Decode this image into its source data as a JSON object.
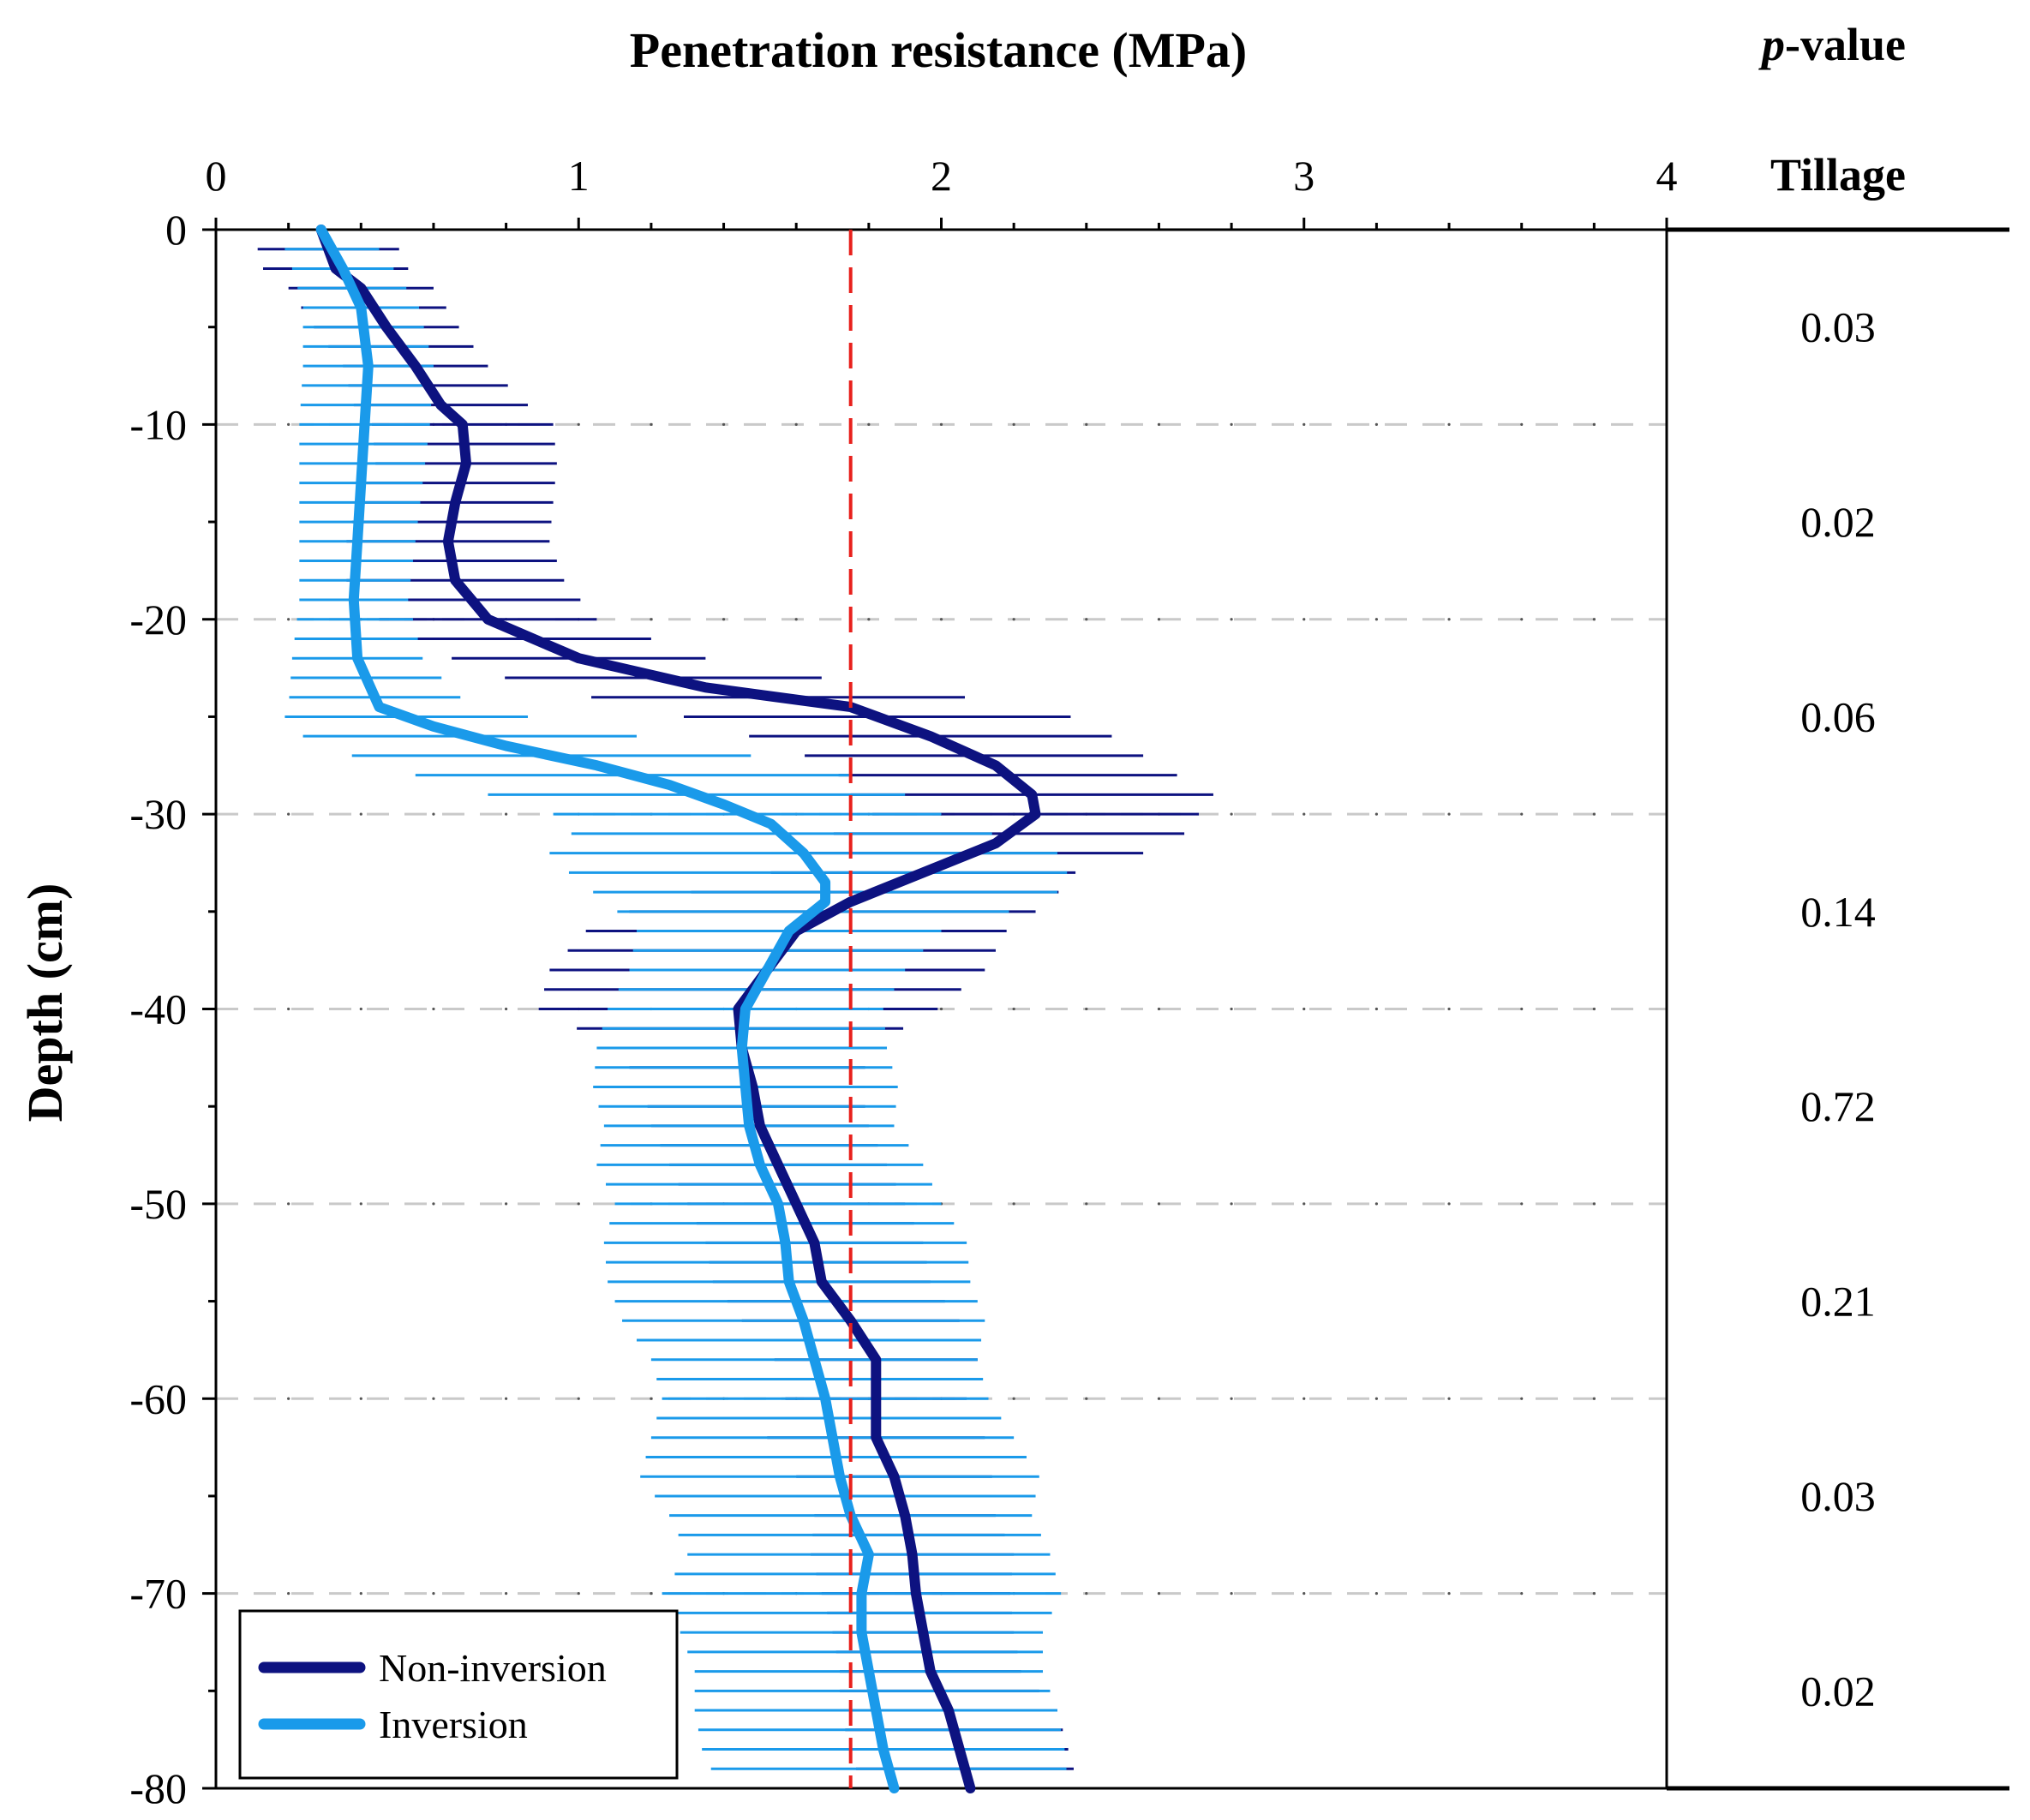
{
  "chart_data": {
    "type": "line",
    "title": "Penetration resistance (MPa)",
    "xlabel": "Penetration resistance (MPa)",
    "ylabel": "Depth (cm)",
    "xlim": [
      0,
      4
    ],
    "ylim": [
      -80,
      0
    ],
    "x_ticks": [
      "0",
      "1",
      "2",
      "3",
      "4"
    ],
    "y_ticks": [
      "0",
      "-10",
      "-20",
      "-30",
      "-40",
      "-50",
      "-60",
      "-70",
      "-80"
    ],
    "threshold": {
      "x": 1.75,
      "color": "#e8201c",
      "style": "dashed"
    },
    "series": [
      {
        "name": "Non-inversion",
        "color": "#0d1280",
        "points": [
          [
            0.29,
            0
          ],
          [
            0.33,
            -2
          ],
          [
            0.4,
            -3
          ],
          [
            0.47,
            -5
          ],
          [
            0.55,
            -7
          ],
          [
            0.62,
            -9
          ],
          [
            0.68,
            -10
          ],
          [
            0.69,
            -12
          ],
          [
            0.66,
            -14
          ],
          [
            0.64,
            -16
          ],
          [
            0.66,
            -18
          ],
          [
            0.75,
            -20
          ],
          [
            1.0,
            -22
          ],
          [
            1.35,
            -23.5
          ],
          [
            1.75,
            -24.5
          ],
          [
            1.97,
            -26
          ],
          [
            2.15,
            -27.5
          ],
          [
            2.25,
            -29
          ],
          [
            2.26,
            -30
          ],
          [
            2.15,
            -31.5
          ],
          [
            1.95,
            -33
          ],
          [
            1.75,
            -34.5
          ],
          [
            1.6,
            -36
          ],
          [
            1.52,
            -38
          ],
          [
            1.44,
            -40
          ],
          [
            1.45,
            -42
          ],
          [
            1.48,
            -44
          ],
          [
            1.5,
            -46
          ],
          [
            1.55,
            -48
          ],
          [
            1.6,
            -50
          ],
          [
            1.65,
            -52
          ],
          [
            1.67,
            -54
          ],
          [
            1.75,
            -56
          ],
          [
            1.82,
            -58
          ],
          [
            1.82,
            -60
          ],
          [
            1.82,
            -62
          ],
          [
            1.87,
            -64
          ],
          [
            1.9,
            -66
          ],
          [
            1.92,
            -68
          ],
          [
            1.93,
            -70
          ],
          [
            1.95,
            -72
          ],
          [
            1.97,
            -74
          ],
          [
            2.02,
            -76
          ],
          [
            2.05,
            -78
          ],
          [
            2.08,
            -80
          ]
        ],
        "error": [
          0.19,
          0.2,
          0.2,
          0.2,
          0.2,
          0.24,
          0.25,
          0.25,
          0.27,
          0.28,
          0.3,
          0.3,
          0.35,
          0.48,
          0.55,
          0.5,
          0.45,
          0.5,
          0.45,
          0.5,
          0.42,
          0.55,
          0.58,
          0.6,
          0.55,
          0.35,
          0.3,
          0.3,
          0.3,
          0.3,
          0.3,
          0.3,
          0.3,
          0.28,
          0.25,
          0.3,
          0.27,
          0.25,
          0.28,
          0.26,
          0.25,
          0.25,
          0.3,
          0.3,
          0.3
        ],
        "error_scale": 1
      },
      {
        "name": "Inversion",
        "color": "#1a9aea",
        "points": [
          [
            0.29,
            0
          ],
          [
            0.35,
            -2
          ],
          [
            0.4,
            -4
          ],
          [
            0.42,
            -7
          ],
          [
            0.41,
            -10
          ],
          [
            0.4,
            -13
          ],
          [
            0.39,
            -16
          ],
          [
            0.38,
            -19
          ],
          [
            0.39,
            -22
          ],
          [
            0.45,
            -24.5
          ],
          [
            0.6,
            -25.5
          ],
          [
            0.8,
            -26.5
          ],
          [
            1.05,
            -27.5
          ],
          [
            1.25,
            -28.5
          ],
          [
            1.4,
            -29.5
          ],
          [
            1.53,
            -30.5
          ],
          [
            1.62,
            -32
          ],
          [
            1.68,
            -33.5
          ],
          [
            1.68,
            -34.5
          ],
          [
            1.58,
            -36
          ],
          [
            1.52,
            -38
          ],
          [
            1.46,
            -40
          ],
          [
            1.45,
            -42
          ],
          [
            1.46,
            -44
          ],
          [
            1.47,
            -46
          ],
          [
            1.5,
            -48
          ],
          [
            1.55,
            -50
          ],
          [
            1.57,
            -52
          ],
          [
            1.58,
            -54
          ],
          [
            1.62,
            -56
          ],
          [
            1.65,
            -58
          ],
          [
            1.68,
            -60
          ],
          [
            1.7,
            -62
          ],
          [
            1.72,
            -64
          ],
          [
            1.75,
            -66
          ],
          [
            1.8,
            -68
          ],
          [
            1.78,
            -70
          ],
          [
            1.78,
            -72
          ],
          [
            1.8,
            -74
          ],
          [
            1.82,
            -76
          ],
          [
            1.84,
            -78
          ],
          [
            1.87,
            -80
          ]
        ],
        "error": [
          0.12,
          0.14,
          0.16,
          0.18,
          0.18,
          0.17,
          0.16,
          0.15,
          0.18,
          0.25,
          0.42,
          0.5,
          0.6,
          0.6,
          0.55,
          0.52,
          0.7,
          0.68,
          0.6,
          0.42,
          0.38,
          0.38,
          0.4,
          0.42,
          0.4,
          0.45,
          0.45,
          0.5,
          0.5,
          0.5,
          0.45,
          0.45,
          0.5,
          0.55,
          0.5,
          0.5,
          0.55,
          0.5,
          0.48,
          0.5,
          0.5,
          0.48
        ],
        "error_scale": 1
      }
    ],
    "legend": [
      "Non-inversion",
      "Inversion"
    ],
    "legend_position": "bottom-left"
  },
  "p_values": {
    "header": "-value",
    "header_p": "p",
    "subheader": "Tillage",
    "values": [
      {
        "range": [
          0,
          -10
        ],
        "value": "0.03"
      },
      {
        "range": [
          -10,
          -20
        ],
        "value": "0.02"
      },
      {
        "range": [
          -20,
          -30
        ],
        "value": "0.06"
      },
      {
        "range": [
          -30,
          -40
        ],
        "value": "0.14"
      },
      {
        "range": [
          -40,
          -50
        ],
        "value": "0.72"
      },
      {
        "range": [
          -50,
          -60
        ],
        "value": "0.21"
      },
      {
        "range": [
          -60,
          -70
        ],
        "value": "0.03"
      },
      {
        "range": [
          -70,
          -80
        ],
        "value": "0.02"
      }
    ]
  }
}
